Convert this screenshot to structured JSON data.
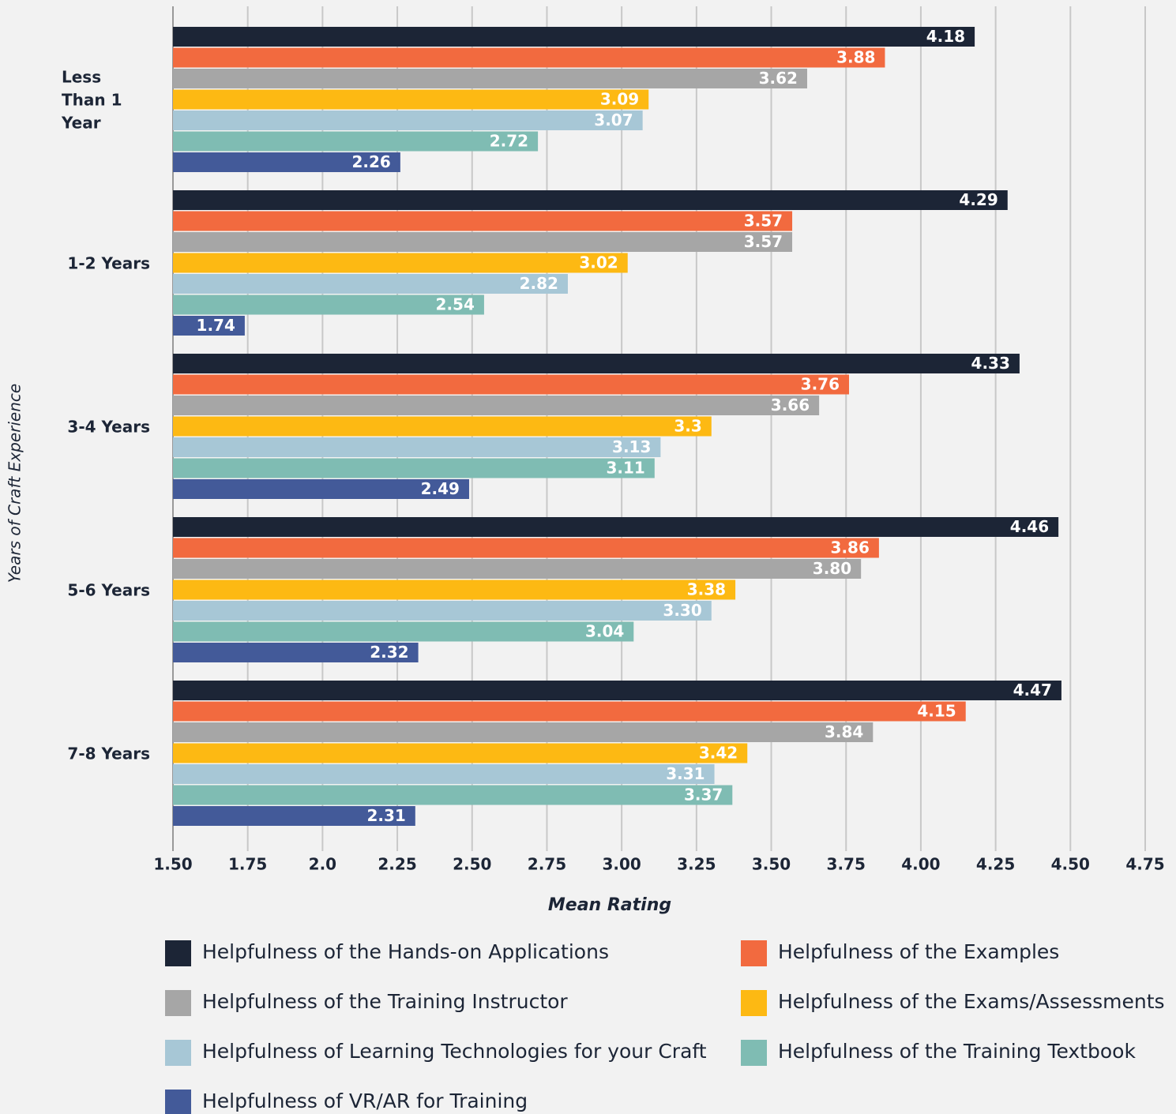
{
  "chart_data": {
    "type": "hbar",
    "x_label": "Mean Rating",
    "y_label": "Years of Craft Experience",
    "categories": [
      "Less Than 1 Year",
      "1-2 Years",
      "3-4 Years",
      "5-6 Years",
      "7-8 Years"
    ],
    "series": [
      {
        "name": "Helpfulness of the Hands-on Applications",
        "color": "#1c2536",
        "values": [
          4.18,
          4.29,
          4.33,
          4.46,
          4.47
        ],
        "value_labels": [
          "4.18",
          "4.29",
          "4.33",
          "4.46",
          "4.47"
        ]
      },
      {
        "name": "Helpfulness of the Examples",
        "color": "#f26a3f",
        "values": [
          3.88,
          3.57,
          3.76,
          3.86,
          4.15
        ],
        "value_labels": [
          "3.88",
          "3.57",
          "3.76",
          "3.86",
          "4.15"
        ]
      },
      {
        "name": "Helpfulness of the Training Instructor",
        "color": "#a6a6a6",
        "values": [
          3.62,
          3.57,
          3.66,
          3.8,
          3.84
        ],
        "value_labels": [
          "3.62",
          "3.57",
          "3.66",
          "3.80",
          "3.84"
        ]
      },
      {
        "name": "Helpfulness of the Exams/Assessments",
        "color": "#fdb913",
        "values": [
          3.09,
          3.02,
          3.3,
          3.38,
          3.42
        ],
        "value_labels": [
          "3.09",
          "3.02",
          "3.3",
          "3.38",
          "3.42"
        ]
      },
      {
        "name": "Helpfulness of Learning Technologies for your Craft",
        "color": "#a7c7d6",
        "values": [
          3.07,
          2.82,
          3.13,
          3.3,
          3.31
        ],
        "value_labels": [
          "3.07",
          "2.82",
          "3.13",
          "3.30",
          "3.31"
        ]
      },
      {
        "name": "Helpfulness of the Training Textbook",
        "color": "#7fbcb3",
        "values": [
          2.72,
          2.54,
          3.11,
          3.04,
          3.37
        ],
        "value_labels": [
          "2.72",
          "2.54",
          "3.11",
          "3.04",
          "3.37"
        ]
      },
      {
        "name": "Helpfulness of VR/AR for Training",
        "color": "#435a99",
        "values": [
          2.26,
          1.74,
          2.49,
          2.32,
          2.31
        ],
        "value_labels": [
          "2.26",
          "1.74",
          "2.49",
          "2.32",
          "2.31"
        ]
      }
    ],
    "xlim": [
      1.5,
      4.75
    ],
    "xticks": [
      {
        "value": 1.5,
        "label": "1.50"
      },
      1.75,
      {
        "value": 2,
        "label": "2.0"
      },
      2.25,
      {
        "value": 2.5,
        "label": "2.50"
      },
      2.75,
      {
        "value": 3,
        "label": "3.00"
      },
      3.25,
      {
        "value": 3.5,
        "label": "3.50"
      },
      3.75,
      {
        "value": 4,
        "label": "4.00"
      },
      4.25,
      {
        "value": 4.5,
        "label": "4.50"
      },
      4.75
    ],
    "grid": true
  }
}
